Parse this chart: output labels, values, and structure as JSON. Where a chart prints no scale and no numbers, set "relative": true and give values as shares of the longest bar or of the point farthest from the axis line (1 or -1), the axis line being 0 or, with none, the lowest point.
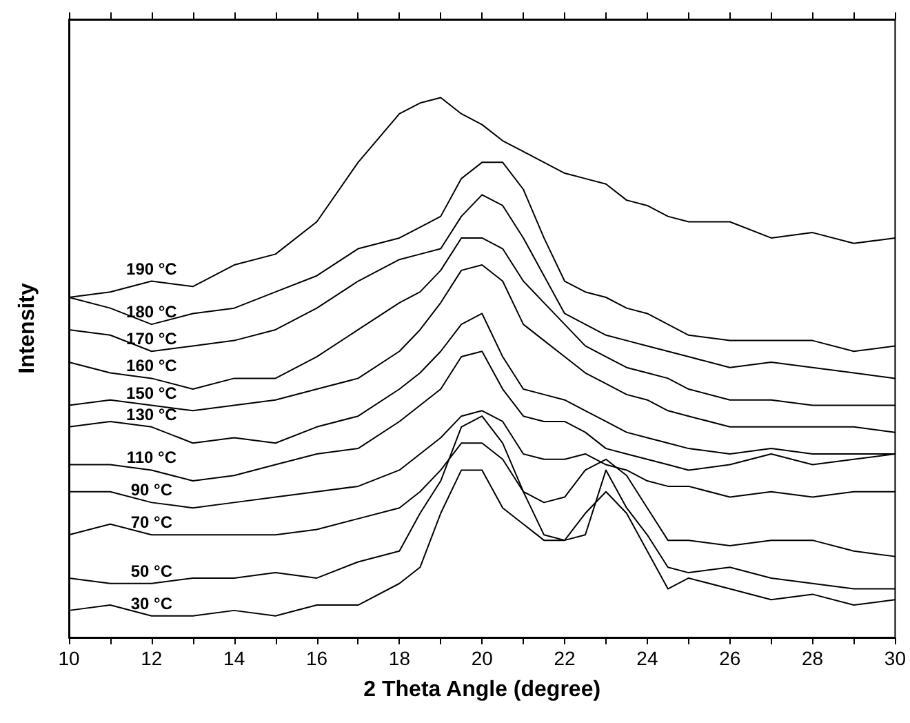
{
  "chart_data": {
    "type": "line",
    "relative": true,
    "xlabel": "2 Theta Angle (degree)",
    "ylabel": "Intensity",
    "xlim": [
      10,
      30
    ],
    "xticks": [
      10,
      {
        "value": 11,
        "label": null
      },
      12,
      {
        "value": 13,
        "label": null
      },
      14,
      {
        "value": 15,
        "label": null
      },
      16,
      {
        "value": 17,
        "label": null
      },
      18,
      {
        "value": 19,
        "label": null
      },
      20,
      {
        "value": 21,
        "label": null
      },
      22,
      {
        "value": 23,
        "label": null
      },
      24,
      {
        "value": 25,
        "label": null
      },
      26,
      {
        "value": 27,
        "label": null
      },
      28,
      {
        "value": 29,
        "label": null
      },
      30
    ],
    "x": [
      10,
      11,
      12,
      13,
      14,
      15,
      16,
      17,
      18,
      18.5,
      19,
      19.5,
      20,
      20.5,
      21,
      21.5,
      22,
      22.5,
      23,
      23.5,
      24,
      24.5,
      25,
      26,
      27,
      28,
      29,
      30
    ],
    "series": [
      {
        "name": "190 °C",
        "color": "#000000",
        "values": [
          0.63,
          0.64,
          0.66,
          0.65,
          0.69,
          0.71,
          0.77,
          0.88,
          0.97,
          0.99,
          1.0,
          0.97,
          0.95,
          0.92,
          0.9,
          0.88,
          0.86,
          0.85,
          0.84,
          0.81,
          0.8,
          0.78,
          0.77,
          0.77,
          0.74,
          0.75,
          0.73,
          0.74
        ]
      },
      {
        "name": "180 °C",
        "color": "#000000",
        "values": [
          0.63,
          0.61,
          0.58,
          0.6,
          0.61,
          0.64,
          0.67,
          0.72,
          0.74,
          0.76,
          0.78,
          0.85,
          0.88,
          0.88,
          0.83,
          0.74,
          0.66,
          0.64,
          0.63,
          0.61,
          0.6,
          0.58,
          0.56,
          0.55,
          0.55,
          0.55,
          0.53,
          0.54
        ]
      },
      {
        "name": "170 °C",
        "color": "#000000",
        "values": [
          0.57,
          0.56,
          0.53,
          0.54,
          0.55,
          0.57,
          0.61,
          0.66,
          0.7,
          0.71,
          0.72,
          0.78,
          0.82,
          0.8,
          0.74,
          0.67,
          0.6,
          0.58,
          0.56,
          0.55,
          0.54,
          0.53,
          0.52,
          0.5,
          0.51,
          0.5,
          0.49,
          0.48
        ]
      },
      {
        "name": "160 °C",
        "color": "#000000",
        "values": [
          0.51,
          0.49,
          0.48,
          0.46,
          0.48,
          0.48,
          0.52,
          0.57,
          0.62,
          0.64,
          0.68,
          0.74,
          0.74,
          0.72,
          0.66,
          0.62,
          0.58,
          0.54,
          0.52,
          0.5,
          0.49,
          0.48,
          0.46,
          0.44,
          0.44,
          0.43,
          0.43,
          0.43
        ]
      },
      {
        "name": "150 °C",
        "color": "#000000",
        "values": [
          0.43,
          0.44,
          0.43,
          0.42,
          0.43,
          0.44,
          0.46,
          0.48,
          0.53,
          0.57,
          0.62,
          0.68,
          0.69,
          0.66,
          0.58,
          0.55,
          0.52,
          0.49,
          0.47,
          0.45,
          0.44,
          0.42,
          0.41,
          0.39,
          0.39,
          0.39,
          0.39,
          0.38
        ]
      },
      {
        "name": "130 °C",
        "color": "#000000",
        "values": [
          0.39,
          0.4,
          0.39,
          0.36,
          0.37,
          0.36,
          0.39,
          0.41,
          0.46,
          0.49,
          0.53,
          0.58,
          0.6,
          0.52,
          0.46,
          0.45,
          0.44,
          0.42,
          0.4,
          0.38,
          0.37,
          0.36,
          0.35,
          0.34,
          0.35,
          0.34,
          0.34,
          0.34
        ]
      },
      {
        "name": "110 °C",
        "color": "#000000",
        "values": [
          0.32,
          0.32,
          0.31,
          0.29,
          0.3,
          0.32,
          0.34,
          0.35,
          0.4,
          0.43,
          0.46,
          0.52,
          0.53,
          0.46,
          0.41,
          0.4,
          0.4,
          0.38,
          0.35,
          0.34,
          0.33,
          0.32,
          0.31,
          0.32,
          0.34,
          0.32,
          0.33,
          0.34
        ]
      },
      {
        "name": "90 °C",
        "color": "#000000",
        "values": [
          0.27,
          0.27,
          0.25,
          0.24,
          0.25,
          0.26,
          0.27,
          0.28,
          0.31,
          0.34,
          0.37,
          0.41,
          0.42,
          0.4,
          0.34,
          0.33,
          0.33,
          0.34,
          0.32,
          0.31,
          0.29,
          0.28,
          0.28,
          0.26,
          0.27,
          0.26,
          0.27,
          0.27
        ]
      },
      {
        "name": "70 °C",
        "color": "#000000",
        "values": [
          0.19,
          0.21,
          0.19,
          0.19,
          0.19,
          0.19,
          0.2,
          0.22,
          0.24,
          0.27,
          0.31,
          0.36,
          0.36,
          0.33,
          0.27,
          0.25,
          0.26,
          0.31,
          0.33,
          0.3,
          0.24,
          0.18,
          0.18,
          0.17,
          0.18,
          0.18,
          0.16,
          0.15
        ]
      },
      {
        "name": "50 °C",
        "color": "#000000",
        "values": [
          0.11,
          0.1,
          0.1,
          0.11,
          0.11,
          0.12,
          0.11,
          0.14,
          0.16,
          0.23,
          0.29,
          0.39,
          0.41,
          0.36,
          0.27,
          0.19,
          0.18,
          0.19,
          0.31,
          0.24,
          0.19,
          0.13,
          0.12,
          0.13,
          0.11,
          0.1,
          0.09,
          0.09
        ]
      },
      {
        "name": "30 °C",
        "color": "#000000",
        "values": [
          0.05,
          0.06,
          0.04,
          0.04,
          0.05,
          0.04,
          0.06,
          0.06,
          0.1,
          0.13,
          0.23,
          0.31,
          0.31,
          0.24,
          0.21,
          0.18,
          0.18,
          0.23,
          0.27,
          0.23,
          0.16,
          0.09,
          0.11,
          0.09,
          0.07,
          0.08,
          0.06,
          0.07
        ]
      }
    ]
  }
}
